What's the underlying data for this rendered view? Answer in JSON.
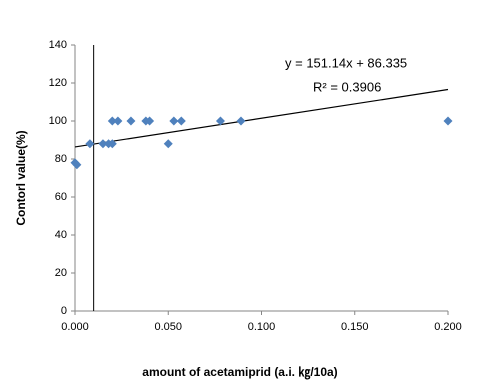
{
  "chart_data": {
    "type": "scatter",
    "x_label": "amount of acetamiprid (a.i. ㎏/10a)",
    "y_label": "Contorl value(%)",
    "series": [
      {
        "name": "Contorl value",
        "color": "#4f81bd",
        "x": [
          0.0,
          0.001,
          0.008,
          0.015,
          0.018,
          0.02,
          0.02,
          0.023,
          0.03,
          0.038,
          0.04,
          0.05,
          0.053,
          0.057,
          0.078,
          0.089,
          0.2
        ],
        "values": [
          78,
          77,
          88,
          88,
          88,
          88,
          100,
          100,
          100,
          100,
          100,
          88,
          100,
          100,
          100,
          100,
          100
        ]
      }
    ],
    "trendline": {
      "equation": "y = 151.14x + 86.335",
      "r2": "R² = 0.3906",
      "slope": 151.14,
      "intercept": 86.335
    },
    "vline_x": 0.01,
    "xlim": [
      0,
      0.2
    ],
    "xticks": [
      {
        "value": 0,
        "label": "0.000"
      },
      {
        "value": 0.05,
        "label": "0.050"
      },
      {
        "value": 0.1,
        "label": "0.100"
      },
      {
        "value": 0.15,
        "label": "0.150"
      },
      {
        "value": 0.2,
        "label": "0.200"
      }
    ],
    "ylim": [
      0,
      140
    ],
    "yticks": [
      0,
      20,
      40,
      60,
      80,
      100,
      120,
      140
    ],
    "grid": false
  }
}
